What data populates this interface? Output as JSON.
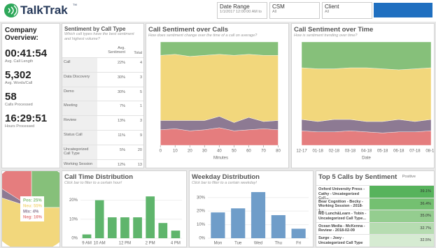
{
  "header": {
    "logo": "TalkTrak",
    "logo_mark": "TM",
    "filters": [
      {
        "label": "Date Range",
        "value": "1/1/2017 12:00:00 AM to"
      },
      {
        "label": "CSM",
        "value": "All"
      },
      {
        "label": "Client",
        "value": "All"
      }
    ]
  },
  "overview": {
    "title": "Company Overview:",
    "metrics": [
      {
        "value": "00:41:54",
        "label": "Avg. Call Length"
      },
      {
        "value": "5,302",
        "label": "Avg. Words/Call"
      },
      {
        "value": "58",
        "label": "Calls Processed"
      },
      {
        "value": "16:29:51",
        "label": "Hours Processed"
      }
    ]
  },
  "call_type_table": {
    "title": "Sentiment by Call Type",
    "subtitle": "Which call types have the best sentiment and highest volume?",
    "columns": [
      "Avg. Sentiment",
      "Total"
    ],
    "rows": [
      [
        "Call",
        "22%",
        4
      ],
      [
        "Data Discovery",
        "30%",
        3
      ],
      [
        "Demo",
        "30%",
        5
      ],
      [
        "Meeting",
        "7%",
        1
      ],
      [
        "Review",
        "13%",
        3
      ],
      [
        "Status Call",
        "11%",
        9
      ],
      [
        "Uncategorized Call Type",
        "5%",
        20
      ],
      [
        "Working Session",
        "12%",
        13
      ]
    ]
  },
  "chart_data": [
    {
      "type": "area",
      "stacked": true,
      "title": "Call Sentiment over Calls",
      "subtitle": "How does sentiment change over the time of a call on average?",
      "x": [
        0,
        10,
        20,
        30,
        40,
        50,
        60,
        70,
        80
      ],
      "xlim": [
        -3,
        85
      ],
      "xticks": [
        0,
        10,
        20,
        30,
        40,
        50,
        60,
        70,
        80
      ],
      "x_label": "Minutes",
      "ylim": [
        0,
        100
      ],
      "series": [
        {
          "color": "#e57d7e",
          "values": [
            15,
            16,
            14,
            15,
            17,
            14,
            15,
            16,
            15
          ]
        },
        {
          "color": "#8d7a93",
          "values": [
            9,
            8,
            10,
            9,
            11,
            8,
            12,
            7,
            9
          ]
        },
        {
          "color": "#f2d77c",
          "values": [
            63,
            64,
            62,
            63,
            60,
            65,
            61,
            64,
            63
          ]
        },
        {
          "color": "#86c07a",
          "values": [
            13,
            12,
            14,
            13,
            12,
            13,
            12,
            13,
            13
          ]
        }
      ]
    },
    {
      "type": "area",
      "stacked": true,
      "title": "Call Sentiment over Time",
      "subtitle": "How is sentiment trending over time?",
      "categories": [
        "12-17",
        "01-18",
        "02-18",
        "03-18",
        "04-18",
        "05-18",
        "06-18",
        "07-18",
        "08-18"
      ],
      "x_label": "Date",
      "ylim": [
        0,
        100
      ],
      "series": [
        {
          "color": "#e57d7e",
          "values": [
            14,
            13,
            13,
            14,
            13,
            12,
            13,
            13,
            14
          ]
        },
        {
          "color": "#8d7a93",
          "values": [
            11,
            10,
            12,
            11,
            10,
            11,
            12,
            10,
            11
          ]
        },
        {
          "color": "#f2d77c",
          "values": [
            50,
            51,
            49,
            50,
            52,
            51,
            48,
            51,
            50
          ]
        },
        {
          "color": "#86c07a",
          "values": [
            25,
            26,
            26,
            25,
            25,
            26,
            27,
            26,
            25
          ]
        }
      ]
    },
    {
      "type": "pie",
      "values": [
        25,
        55,
        4,
        16
      ],
      "value_labels": [
        "Pos: 25%",
        "Neu: 55%",
        "Mix: 4%",
        "Neg: 16%"
      ],
      "colors": [
        "#86c07a",
        "#f2d77c",
        "#8d7a93",
        "#e57d7e"
      ]
    },
    {
      "type": "bar",
      "title": "Call Time Distribution",
      "subtitle": "Click bar to filter to a certain hour!",
      "categories": [
        "9 AM",
        "10 AM",
        null,
        "12 PM",
        null,
        "2 PM",
        null,
        "4 PM"
      ],
      "values": [
        2,
        20,
        11,
        11,
        11,
        22,
        8,
        4
      ],
      "color": "#5fb56c",
      "ylim": [
        0,
        25
      ],
      "yticks": [
        {
          "value": 0,
          "label": "0%"
        },
        {
          "value": 10,
          "label": "10%"
        },
        {
          "value": 20,
          "label": "20%"
        }
      ]
    },
    {
      "type": "bar",
      "title": "Weekday Distribution",
      "subtitle": "Click bar to filter to a certain weekday!",
      "categories": [
        "Mon",
        "Tue",
        "Wed",
        "Thu",
        "Fri"
      ],
      "values": [
        19,
        22,
        34,
        17,
        7
      ],
      "color": "#6f9dc9",
      "ylim": [
        0,
        35
      ],
      "yticks": [
        {
          "value": 0,
          "label": "0%"
        },
        {
          "value": 10,
          "label": "10%"
        },
        {
          "value": 20,
          "label": "20%"
        },
        {
          "value": 30,
          "label": "30%"
        }
      ]
    }
  ],
  "top_calls": {
    "title": "Top 5 Calls by Sentiment",
    "column": "Positive",
    "rows": [
      {
        "name": "Oxford University Press - Cathy - Uncategorized Call...",
        "value": "39.1%",
        "color": "#57b35c"
      },
      {
        "name": "Bear Cognition - Becky - Working Session - 2018-1...",
        "value": "36.4%",
        "color": "#74c071"
      },
      {
        "name": "MD Lunch&Learn - Tobin - Uncategorized Call Type...",
        "value": "35.0%",
        "color": "#94cd8f"
      },
      {
        "name": "Ocean Media - McKenna - Review - 2018-02-09",
        "value": "32.7%",
        "color": "#b6dcb1"
      },
      {
        "name": "Surge - Joey - Uncategorized Call Type -...",
        "value": "32.5%",
        "color": "#d6ebd2"
      }
    ]
  }
}
